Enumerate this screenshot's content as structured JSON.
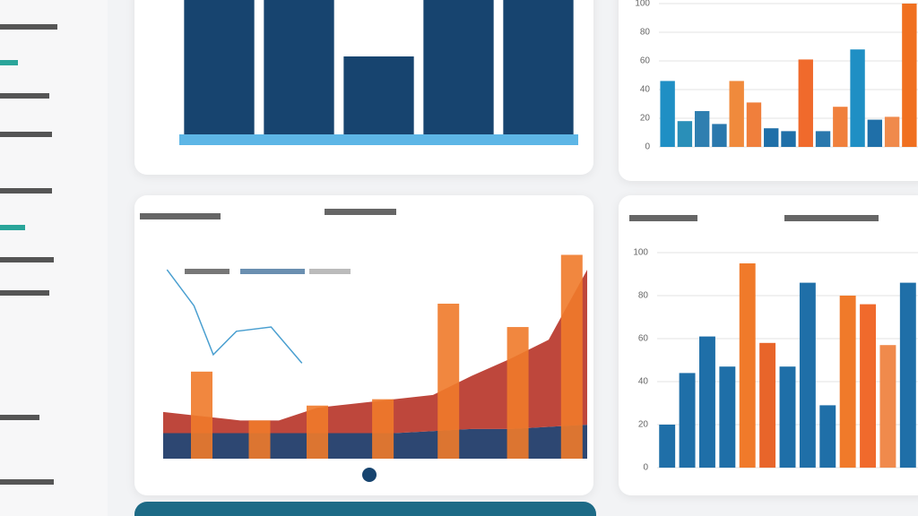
{
  "chart_data": [
    {
      "type": "bar",
      "values": [
        100,
        100,
        58,
        100,
        100
      ],
      "color": "#17446f",
      "ylim": [
        0,
        100
      ]
    },
    {
      "type": "bar",
      "values": [
        46,
        18,
        25,
        16,
        46,
        31,
        13,
        11,
        61,
        11,
        28,
        68,
        19,
        21,
        100
      ],
      "colors": [
        "#1f8fc4",
        "#2a8fb8",
        "#2f7fb0",
        "#2a78ad",
        "#f08a3c",
        "#f07f3c",
        "#1f6fa8",
        "#1f6fa8",
        "#f06a2c",
        "#2a78ad",
        "#f0803c",
        "#1f8fc4",
        "#1f6fa8",
        "#f08a4c",
        "#f07020"
      ],
      "ylim": [
        0,
        100
      ],
      "yticks": [
        0,
        20,
        40,
        60,
        80,
        100
      ],
      "grid": true
    },
    {
      "type": "combo",
      "xlim": [
        0,
        11
      ],
      "ylim": [
        0,
        100
      ],
      "series": [
        {
          "kind": "area",
          "color": "#1b3766",
          "x": [
            0,
            1,
            2,
            3,
            4,
            5,
            6,
            7,
            8,
            9,
            10,
            11
          ],
          "values": [
            12,
            12,
            12,
            12,
            12,
            12,
            12,
            13,
            14,
            14,
            15,
            16
          ]
        },
        {
          "kind": "area",
          "color": "#b8372b",
          "x": [
            0,
            1,
            2,
            3,
            4,
            5,
            6,
            7,
            8,
            9,
            10,
            11
          ],
          "values": [
            10,
            8,
            6,
            6,
            12,
            14,
            16,
            17,
            25,
            33,
            41,
            73
          ]
        },
        {
          "kind": "bar",
          "color": "#f07a2a",
          "x": [
            1,
            2.5,
            4,
            5.7,
            7.4,
            9.2,
            10.6
          ],
          "values": [
            41,
            18,
            25,
            28,
            73,
            62,
            96
          ]
        },
        {
          "kind": "line",
          "color": "#4a9fd0",
          "x": [
            0.1,
            0.8,
            1.3,
            1.9,
            2.8,
            3.6
          ],
          "values": [
            89,
            72,
            49,
            60,
            62,
            45
          ]
        }
      ]
    },
    {
      "type": "bar",
      "values": [
        20,
        44,
        61,
        47,
        95,
        58,
        47,
        86,
        29,
        80,
        76,
        57,
        86
      ],
      "colors": [
        "#1f6fa8",
        "#1f6fa8",
        "#1f6fa8",
        "#1f6fa8",
        "#f07a2a",
        "#e8652a",
        "#1f6fa8",
        "#1f6fa8",
        "#1f6fa8",
        "#f07a2a",
        "#f06a2c",
        "#f08a4c",
        "#1f6fa8"
      ],
      "ylim": [
        0,
        100
      ],
      "yticks": [
        0,
        20,
        40,
        60,
        80,
        100
      ],
      "grid": true
    }
  ]
}
